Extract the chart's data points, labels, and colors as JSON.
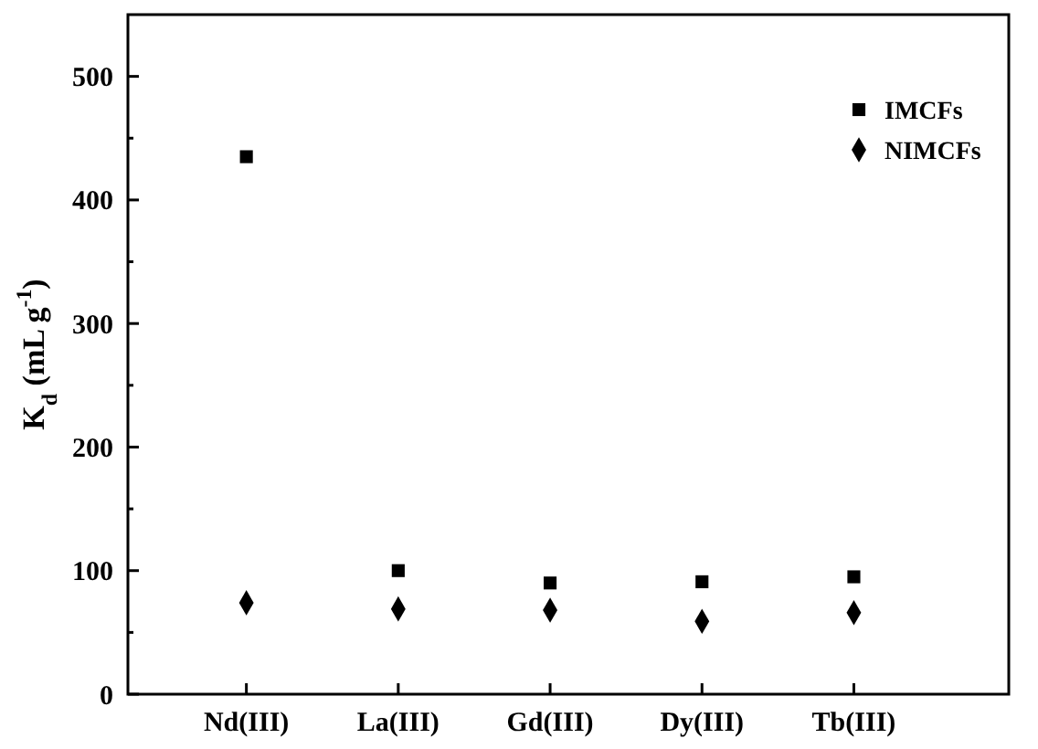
{
  "chart_data": {
    "type": "scatter",
    "ylabel": "K$_{d}$ (mL g$^{-1}$)",
    "categories": [
      "Nd(III)",
      "La(III)",
      "Gd(III)",
      "Dy(III)",
      "Tb(III)"
    ],
    "series": [
      {
        "name": "IMCFs",
        "color": "#000000",
        "marker": "square",
        "values": [
          435,
          100,
          90,
          91,
          95
        ]
      },
      {
        "name": "NIMCFs",
        "color": "#000000",
        "marker": "diamond",
        "values": [
          74,
          69,
          68,
          59,
          66
        ]
      }
    ],
    "ylim": [
      0,
      550
    ],
    "yticks": [
      0,
      {
        "value": 50,
        "label": null
      },
      100,
      {
        "value": 150,
        "label": null
      },
      200,
      {
        "value": 250,
        "label": null
      },
      300,
      {
        "value": 350,
        "label": null
      },
      400,
      {
        "value": 450,
        "label": null
      },
      500
    ],
    "legend": "top right",
    "grid": false
  }
}
